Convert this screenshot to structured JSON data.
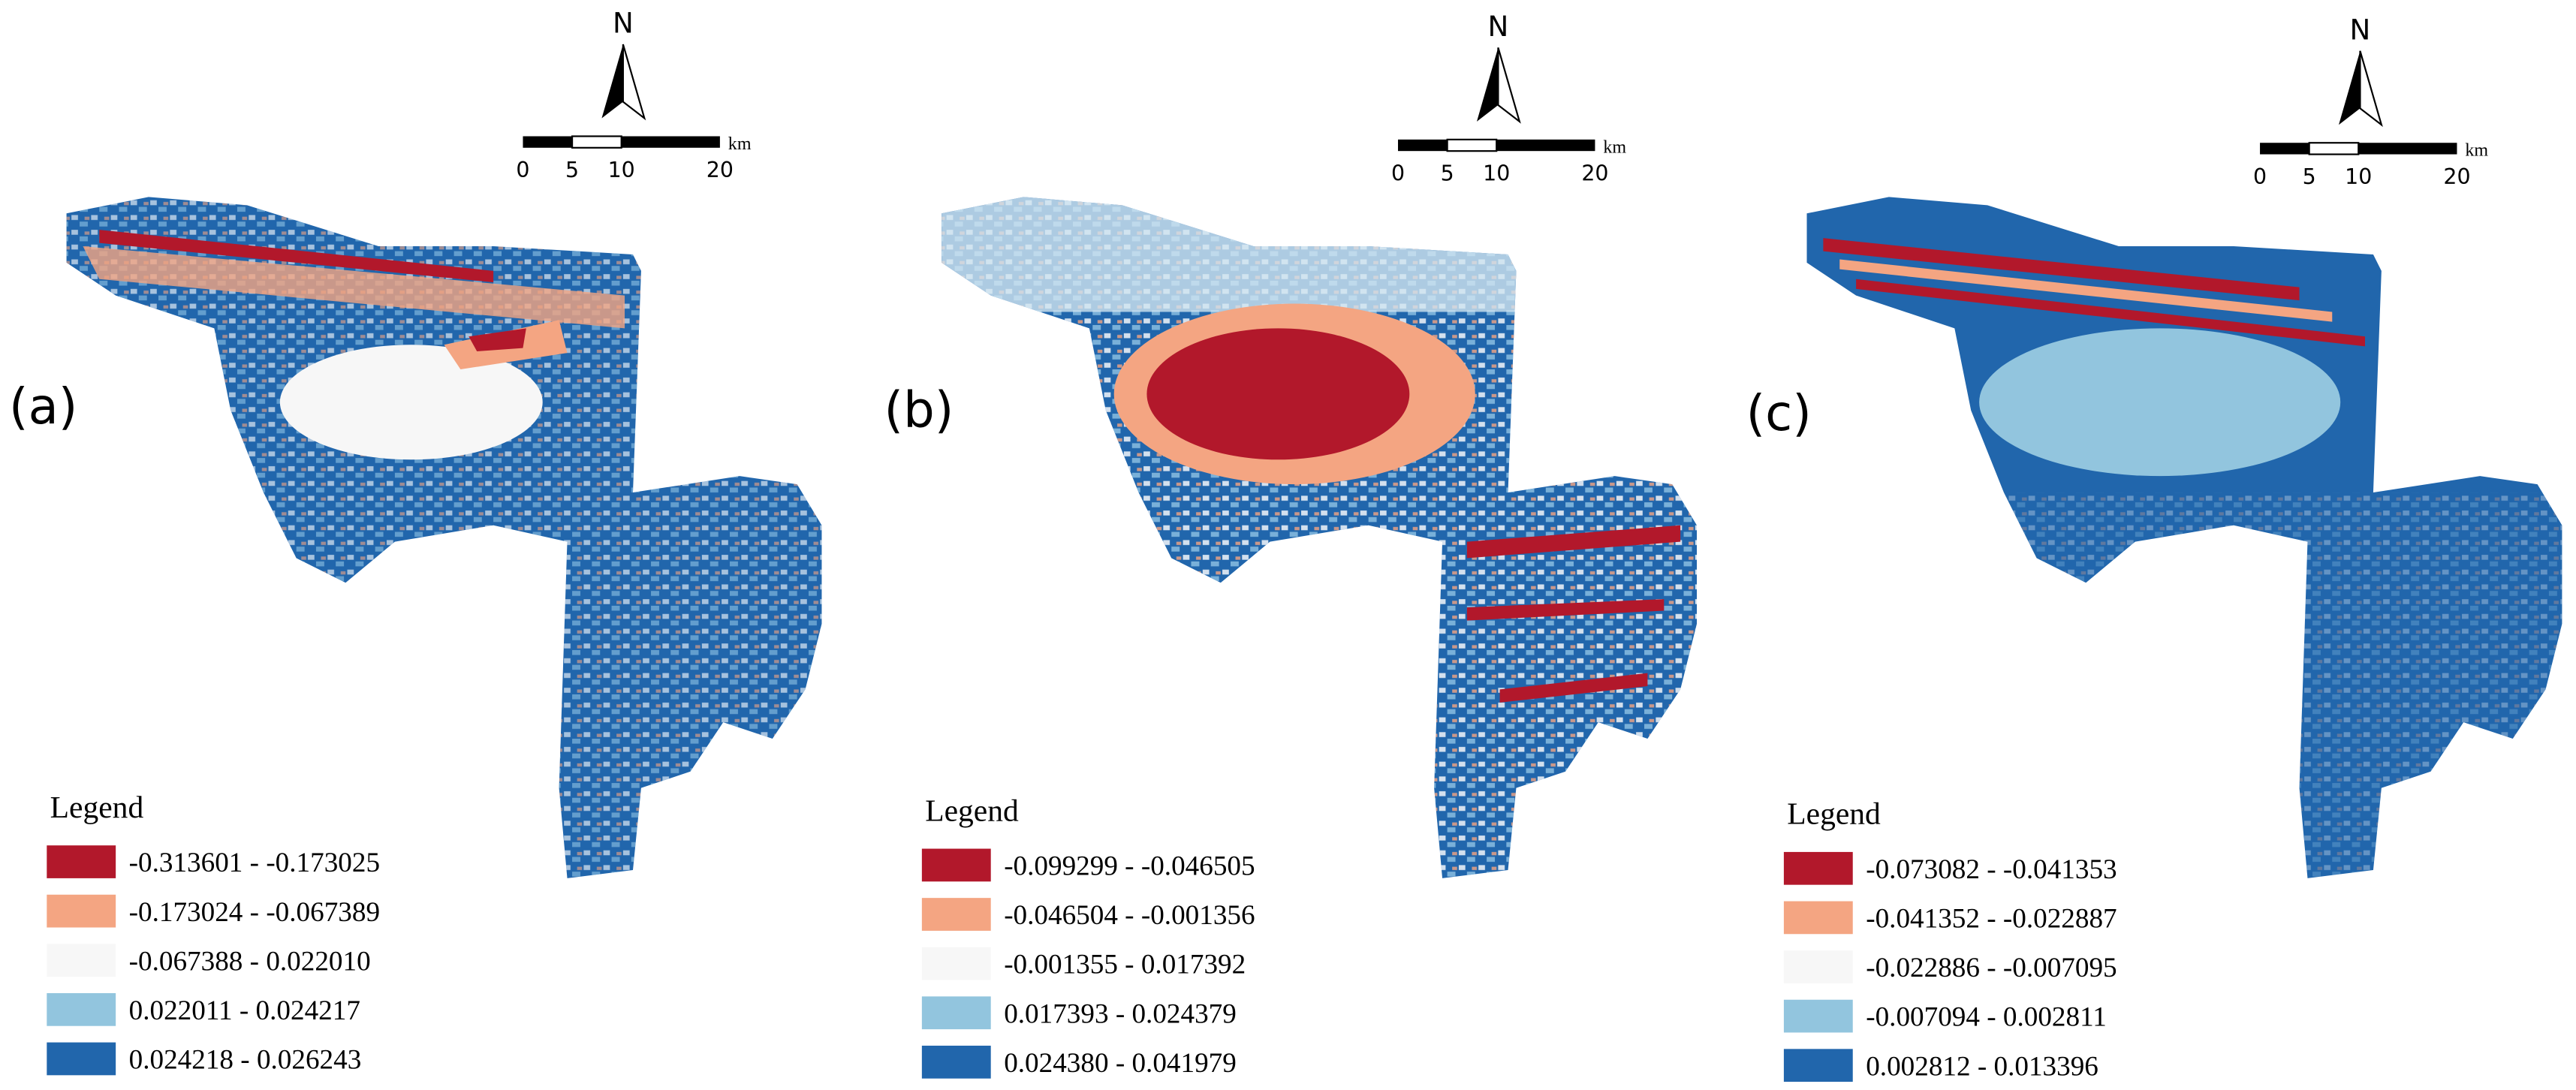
{
  "panels": [
    {
      "label": "(a)",
      "north": "N",
      "scale": {
        "ticks": [
          "0",
          "5",
          "10",
          "20"
        ],
        "unit": "km"
      },
      "legend": {
        "title": "Legend",
        "items": [
          "-0.313601 - -0.173025",
          "-0.173024 - -0.067389",
          "-0.067388 - 0.022010",
          "0.022011 - 0.024217",
          "0.024218 - 0.026243"
        ]
      }
    },
    {
      "label": "(b)",
      "north": "N",
      "scale": {
        "ticks": [
          "0",
          "5",
          "10",
          "20"
        ],
        "unit": "km"
      },
      "legend": {
        "title": "Legend",
        "items": [
          "-0.099299 - -0.046505",
          "-0.046504 - -0.001356",
          "-0.001355 - 0.017392",
          "0.017393 - 0.024379",
          "0.024380 - 0.041979"
        ]
      }
    },
    {
      "label": "(c)",
      "north": "N",
      "scale": {
        "ticks": [
          "0",
          "5",
          "10",
          "20"
        ],
        "unit": "km"
      },
      "legend": {
        "title": "Legend",
        "items": [
          "-0.073082 - -0.041353",
          "-0.041352 - -0.022887",
          "-0.022886 - -0.007095",
          "-0.007094 - 0.002811",
          "0.002812 - 0.013396"
        ]
      }
    }
  ]
}
